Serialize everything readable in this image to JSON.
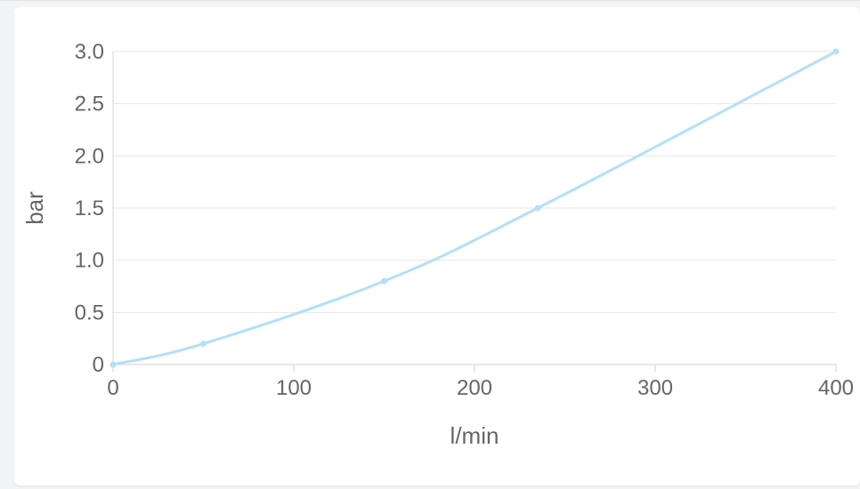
{
  "chart_data": {
    "type": "line",
    "title": "",
    "xlabel": "l/min",
    "ylabel": "bar",
    "xlim": [
      0,
      400
    ],
    "ylim": [
      0,
      3.0
    ],
    "x_ticks": [
      "0",
      "100",
      "200",
      "300",
      "400"
    ],
    "y_ticks": [
      "0",
      "0.5",
      "1.0",
      "1.5",
      "2.0",
      "2.5",
      "3.0"
    ],
    "grid": true,
    "legend": "none",
    "series": [
      {
        "color": "#b3e0f7",
        "x": [
          0,
          50,
          150,
          235,
          400
        ],
        "y": [
          0,
          0.2,
          0.8,
          1.5,
          3.0
        ]
      }
    ]
  }
}
